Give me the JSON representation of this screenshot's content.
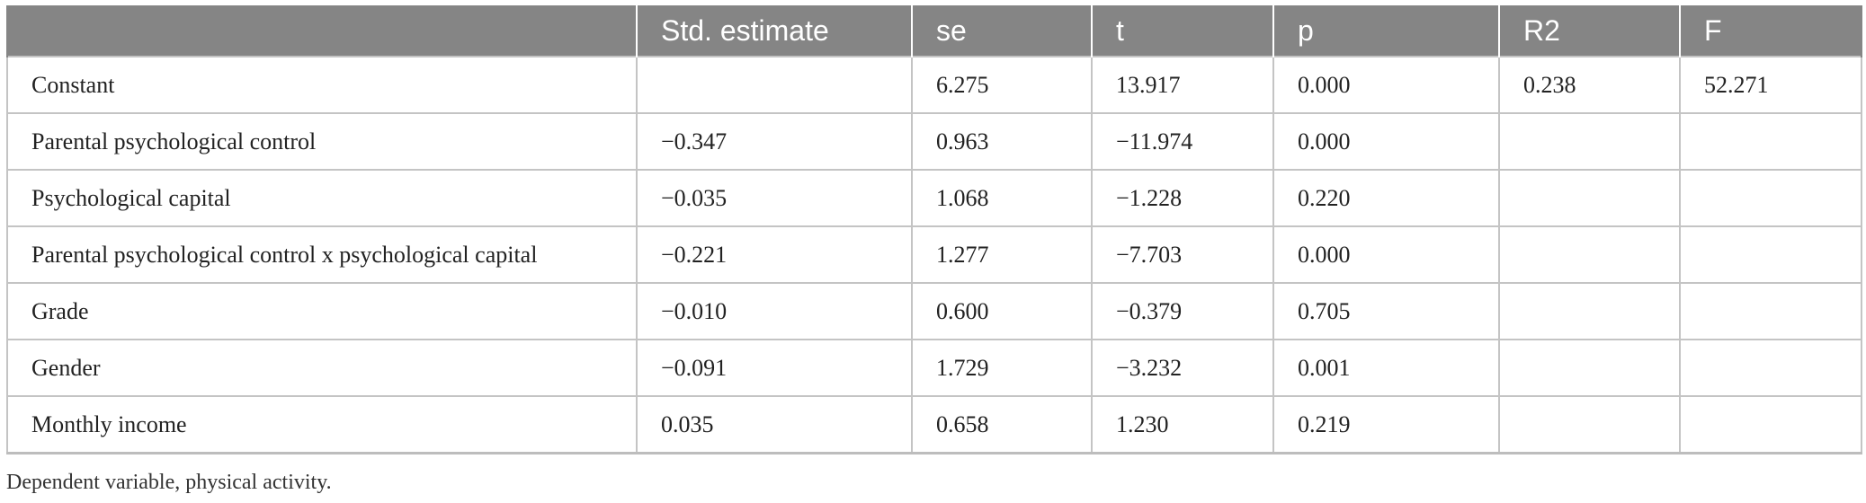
{
  "table": {
    "headers": [
      "",
      "Std. estimate",
      "se",
      "t",
      "p",
      "R2",
      "F"
    ],
    "rows": [
      [
        "Constant",
        "",
        "6.275",
        "13.917",
        "0.000",
        "0.238",
        "52.271"
      ],
      [
        "Parental psychological control",
        "−0.347",
        "0.963",
        "−11.974",
        "0.000",
        "",
        ""
      ],
      [
        "Psychological capital",
        "−0.035",
        "1.068",
        "−1.228",
        "0.220",
        "",
        ""
      ],
      [
        "Parental psychological control x psychological capital",
        "−0.221",
        "1.277",
        "−7.703",
        "0.000",
        "",
        ""
      ],
      [
        "Grade",
        "−0.010",
        "0.600",
        "−0.379",
        "0.705",
        "",
        ""
      ],
      [
        "Gender",
        "−0.091",
        "1.729",
        "−3.232",
        "0.001",
        "",
        ""
      ],
      [
        "Monthly income",
        "0.035",
        "0.658",
        "1.230",
        "0.219",
        "",
        ""
      ]
    ]
  },
  "footnote": "Dependent variable, physical activity."
}
